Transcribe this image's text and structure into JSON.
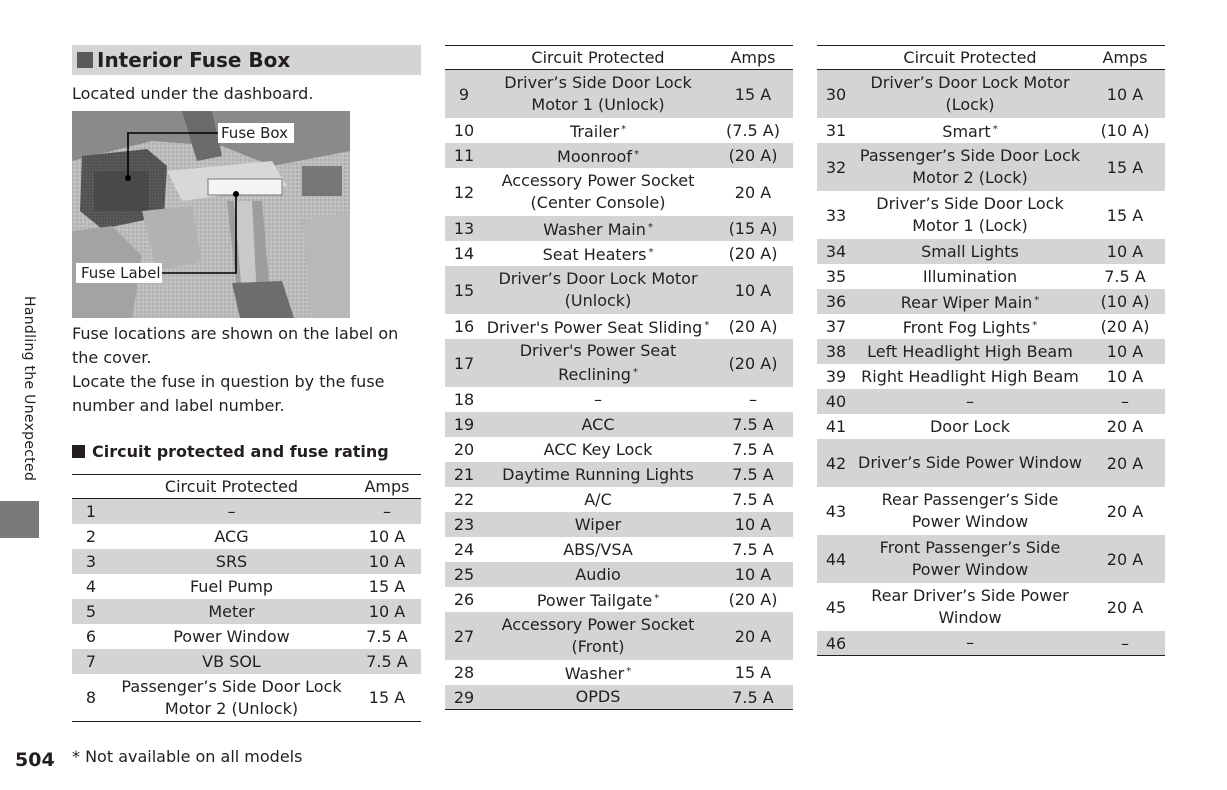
{
  "section_title": "Interior Fuse Box",
  "intro_text": "Located under the dashboard.",
  "figure": {
    "label_fuse_box": "Fuse Box",
    "label_fuse_label": "Fuse Label"
  },
  "desc_line1": "Fuse locations are shown on the label on the cover.",
  "desc_line2": "Locate the fuse in question by the fuse number and label number.",
  "subheading": "Circuit protected and fuse rating",
  "side_tab_text": "Handling the Unexpected",
  "page_number": "504",
  "footnote": "* Not available on all models",
  "table_header": {
    "circuit": "Circuit Protected",
    "amps": "Amps"
  },
  "fuses": [
    {
      "no": "1",
      "circuit": "–",
      "amps": "–"
    },
    {
      "no": "2",
      "circuit": "ACG",
      "amps": "10 A"
    },
    {
      "no": "3",
      "circuit": "SRS",
      "amps": "10 A"
    },
    {
      "no": "4",
      "circuit": "Fuel Pump",
      "amps": "15 A"
    },
    {
      "no": "5",
      "circuit": "Meter",
      "amps": "10 A"
    },
    {
      "no": "6",
      "circuit": "Power Window",
      "amps": "7.5 A"
    },
    {
      "no": "7",
      "circuit": "VB SOL",
      "amps": "7.5 A"
    },
    {
      "no": "8",
      "circuit": "Passenger’s Side Door Lock Motor 2 (Unlock)",
      "amps": "15 A",
      "two": true
    },
    {
      "no": "9",
      "circuit": "Driver’s Side Door Lock Motor 1 (Unlock)",
      "amps": "15 A",
      "two": true
    },
    {
      "no": "10",
      "circuit": "Trailer",
      "amps": "(7.5 A)",
      "star": true
    },
    {
      "no": "11",
      "circuit": "Moonroof",
      "amps": "(20 A)",
      "star": true
    },
    {
      "no": "12",
      "circuit": "Accessory Power Socket (Center Console)",
      "amps": "20 A",
      "two": true
    },
    {
      "no": "13",
      "circuit": "Washer Main",
      "amps": "(15 A)",
      "star": true
    },
    {
      "no": "14",
      "circuit": "Seat Heaters",
      "amps": "(20 A)",
      "star": true
    },
    {
      "no": "15",
      "circuit": "Driver’s Door Lock Motor (Unlock)",
      "amps": "10 A",
      "two": true
    },
    {
      "no": "16",
      "circuit": "Driver's Power Seat Sliding",
      "amps": "(20 A)",
      "star": true
    },
    {
      "no": "17",
      "circuit": "Driver's Power Seat Reclining",
      "amps": "(20 A)",
      "star": true,
      "two": true
    },
    {
      "no": "18",
      "circuit": "–",
      "amps": "–"
    },
    {
      "no": "19",
      "circuit": "ACC",
      "amps": "7.5 A"
    },
    {
      "no": "20",
      "circuit": "ACC Key Lock",
      "amps": "7.5 A"
    },
    {
      "no": "21",
      "circuit": "Daytime Running Lights",
      "amps": "7.5 A"
    },
    {
      "no": "22",
      "circuit": "A/C",
      "amps": "7.5 A"
    },
    {
      "no": "23",
      "circuit": "Wiper",
      "amps": "10 A"
    },
    {
      "no": "24",
      "circuit": "ABS/VSA",
      "amps": "7.5 A"
    },
    {
      "no": "25",
      "circuit": "Audio",
      "amps": "10 A"
    },
    {
      "no": "26",
      "circuit": "Power Tailgate",
      "amps": "(20 A)",
      "star": true
    },
    {
      "no": "27",
      "circuit": "Accessory Power Socket (Front)",
      "amps": "20 A",
      "two": true
    },
    {
      "no": "28",
      "circuit": "Washer",
      "amps": "15 A",
      "star": true
    },
    {
      "no": "29",
      "circuit": "OPDS",
      "amps": "7.5 A"
    },
    {
      "no": "30",
      "circuit": "Driver’s Door Lock Motor (Lock)",
      "amps": "10 A",
      "two": true
    },
    {
      "no": "31",
      "circuit": "Smart",
      "amps": "(10 A)",
      "star": true
    },
    {
      "no": "32",
      "circuit": "Passenger’s Side Door Lock Motor 2 (Lock)",
      "amps": "15 A",
      "two": true
    },
    {
      "no": "33",
      "circuit": "Driver’s Side Door Lock Motor 1 (Lock)",
      "amps": "15 A",
      "two": true
    },
    {
      "no": "34",
      "circuit": "Small Lights",
      "amps": "10 A"
    },
    {
      "no": "35",
      "circuit": "Illumination",
      "amps": "7.5 A"
    },
    {
      "no": "36",
      "circuit": "Rear Wiper Main",
      "amps": "(10 A)",
      "star": true
    },
    {
      "no": "37",
      "circuit": "Front Fog Lights",
      "amps": "(20 A)",
      "star": true
    },
    {
      "no": "38",
      "circuit": "Left Headlight High Beam",
      "amps": "10 A"
    },
    {
      "no": "39",
      "circuit": "Right Headlight High Beam",
      "amps": "10 A"
    },
    {
      "no": "40",
      "circuit": "–",
      "amps": "–"
    },
    {
      "no": "41",
      "circuit": "Door Lock",
      "amps": "20 A"
    },
    {
      "no": "42",
      "circuit": "Driver’s Side Power Window",
      "amps": "20 A",
      "two": true
    },
    {
      "no": "43",
      "circuit": "Rear Passenger’s Side Power Window",
      "amps": "20 A",
      "two": true
    },
    {
      "no": "44",
      "circuit": "Front Passenger’s Side Power Window",
      "amps": "20 A",
      "two": true
    },
    {
      "no": "45",
      "circuit": "Rear Driver’s Side Power Window",
      "amps": "20 A",
      "two": true
    },
    {
      "no": "46",
      "circuit": "–",
      "amps": "–"
    }
  ]
}
